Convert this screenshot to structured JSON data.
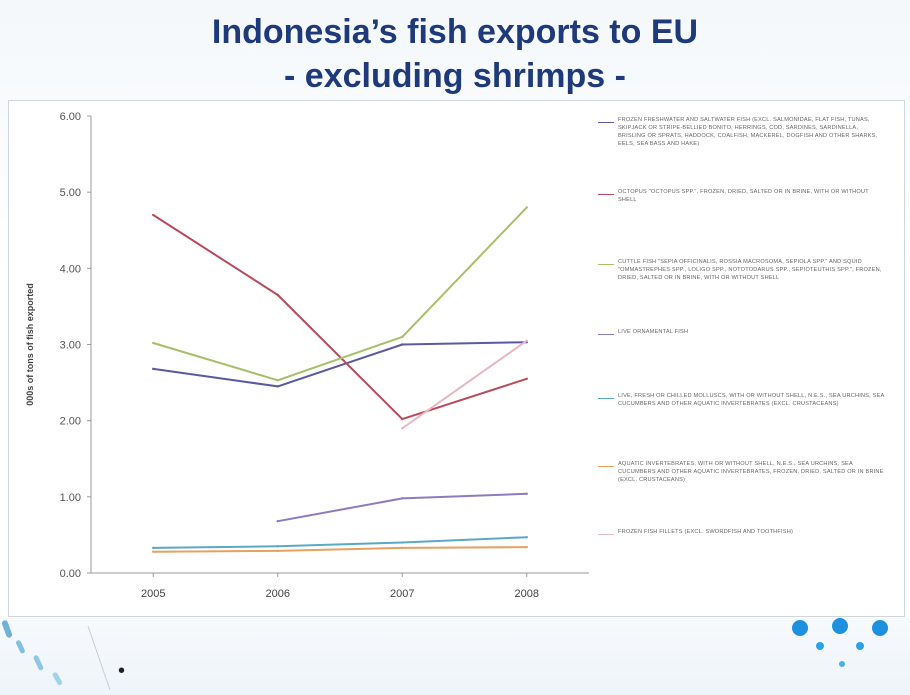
{
  "slide": {
    "title_line1": "Indonesia’s fish exports to EU",
    "title_line2": "- excluding shrimps -",
    "bullet": "•"
  },
  "chart_data": {
    "type": "line",
    "categories": [
      "2005",
      "2006",
      "2007",
      "2008"
    ],
    "ylabel": "000s of tons of fish exported",
    "ylim": [
      0,
      6
    ],
    "yticks": [
      "0.00",
      "1.00",
      "2.00",
      "3.00",
      "4.00",
      "5.00",
      "6.00"
    ],
    "grid": false,
    "legend_position": "right",
    "series": [
      {
        "name": "FROZEN FRESHWATER AND SALTWATER FISH (EXCL. SALMONIDAE, FLAT FISH, TUNAS, SKIPJACK OR STRIPE-BELLIED BONITO, HERRINGS, COD, SARDINES, SARDINELLA, BRISLING OR SPRATS, HADDOCK, COALFISH, MACKEREL, DOGFISH AND OTHER SHARKS, EELS, SEA BASS AND HAKE)",
        "color": "#5a5a9e",
        "values": [
          2.68,
          2.45,
          3.0,
          3.03
        ]
      },
      {
        "name": "OCTOPUS \"OCTOPUS SPP.\", FROZEN, DRIED, SALTED OR IN BRINE, WITH OR WITHOUT SHELL",
        "color": "#b94a5a",
        "values": [
          4.7,
          3.65,
          2.02,
          2.55
        ]
      },
      {
        "name": "CUTTLE FISH \"SEPIA OFFICINALIS, ROSSIA MACROSOMA, SEPIOLA SPP.\" AND SQUID \"OMMASTREPHES SPP., LOLIGO SPP., NOTOTODARUS SPP., SEPIOTEUTHIS SPP.\", FROZEN, DRIED, SALTED OR IN BRINE, WITH OR WITHOUT SHELL",
        "color": "#a8bf6a",
        "values": [
          3.02,
          2.53,
          3.1,
          4.8
        ]
      },
      {
        "name": "LIVE ORNAMENTAL FISH",
        "color": "#8e7bbd",
        "values": [
          null,
          0.68,
          0.98,
          1.04
        ]
      },
      {
        "name": "LIVE, FRESH OR CHILLED MOLLUSCS, WITH OR WITHOUT SHELL, N.E.S., SEA URCHINS, SEA CUCUMBERS AND OTHER AQUATIC INVERTEBRATES (EXCL. CRUSTACEANS)",
        "color": "#5aa9c4",
        "values": [
          0.33,
          0.35,
          0.4,
          0.47
        ]
      },
      {
        "name": "AQUATIC INVERTEBRATES, WITH OR WITHOUT SHELL, N.E.S., SEA URCHINS, SEA CUCUMBERS AND OTHER AQUATIC INVERTEBRATES, FROZEN, DRIED, SALTED OR IN BRINE (EXCL. CRUSTACEANS)",
        "color": "#e8a060",
        "values": [
          0.28,
          0.29,
          0.33,
          0.34
        ]
      },
      {
        "name": "FROZEN FISH FILLETS (EXCL. SWORDFISH AND TOOTHFISH)",
        "color": "#e6b8c0",
        "values": [
          null,
          null,
          1.9,
          3.05
        ]
      }
    ]
  }
}
